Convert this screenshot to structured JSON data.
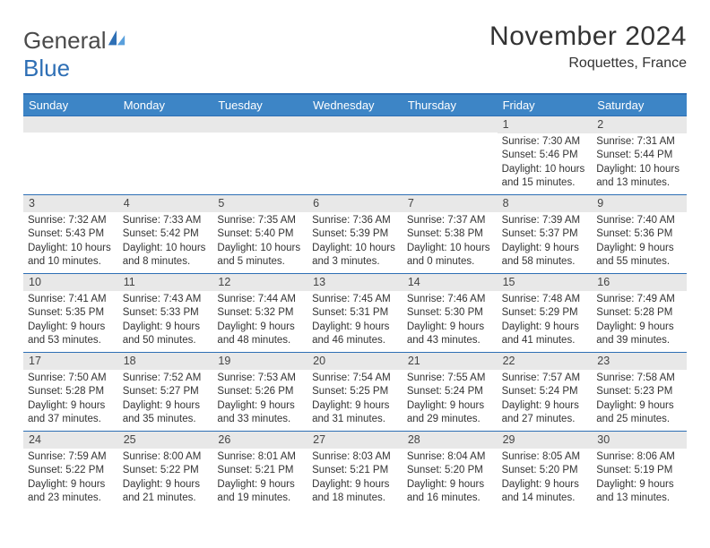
{
  "brand": {
    "part1": "General",
    "part2": "Blue"
  },
  "title": "November 2024",
  "location": "Roquettes, France",
  "colors": {
    "header_bg": "#3d85c6",
    "border": "#2e6fb5",
    "daynum_bg": "#e8e8e8",
    "text": "#333333",
    "brand_gray": "#4a4a4a",
    "brand_blue": "#2e6fb5"
  },
  "weekdays": [
    "Sunday",
    "Monday",
    "Tuesday",
    "Wednesday",
    "Thursday",
    "Friday",
    "Saturday"
  ],
  "weeks": [
    [
      {
        "empty": true
      },
      {
        "empty": true
      },
      {
        "empty": true
      },
      {
        "empty": true
      },
      {
        "empty": true
      },
      {
        "n": "1",
        "sunrise": "Sunrise: 7:30 AM",
        "sunset": "Sunset: 5:46 PM",
        "day": "Daylight: 10 hours and 15 minutes."
      },
      {
        "n": "2",
        "sunrise": "Sunrise: 7:31 AM",
        "sunset": "Sunset: 5:44 PM",
        "day": "Daylight: 10 hours and 13 minutes."
      }
    ],
    [
      {
        "n": "3",
        "sunrise": "Sunrise: 7:32 AM",
        "sunset": "Sunset: 5:43 PM",
        "day": "Daylight: 10 hours and 10 minutes."
      },
      {
        "n": "4",
        "sunrise": "Sunrise: 7:33 AM",
        "sunset": "Sunset: 5:42 PM",
        "day": "Daylight: 10 hours and 8 minutes."
      },
      {
        "n": "5",
        "sunrise": "Sunrise: 7:35 AM",
        "sunset": "Sunset: 5:40 PM",
        "day": "Daylight: 10 hours and 5 minutes."
      },
      {
        "n": "6",
        "sunrise": "Sunrise: 7:36 AM",
        "sunset": "Sunset: 5:39 PM",
        "day": "Daylight: 10 hours and 3 minutes."
      },
      {
        "n": "7",
        "sunrise": "Sunrise: 7:37 AM",
        "sunset": "Sunset: 5:38 PM",
        "day": "Daylight: 10 hours and 0 minutes."
      },
      {
        "n": "8",
        "sunrise": "Sunrise: 7:39 AM",
        "sunset": "Sunset: 5:37 PM",
        "day": "Daylight: 9 hours and 58 minutes."
      },
      {
        "n": "9",
        "sunrise": "Sunrise: 7:40 AM",
        "sunset": "Sunset: 5:36 PM",
        "day": "Daylight: 9 hours and 55 minutes."
      }
    ],
    [
      {
        "n": "10",
        "sunrise": "Sunrise: 7:41 AM",
        "sunset": "Sunset: 5:35 PM",
        "day": "Daylight: 9 hours and 53 minutes."
      },
      {
        "n": "11",
        "sunrise": "Sunrise: 7:43 AM",
        "sunset": "Sunset: 5:33 PM",
        "day": "Daylight: 9 hours and 50 minutes."
      },
      {
        "n": "12",
        "sunrise": "Sunrise: 7:44 AM",
        "sunset": "Sunset: 5:32 PM",
        "day": "Daylight: 9 hours and 48 minutes."
      },
      {
        "n": "13",
        "sunrise": "Sunrise: 7:45 AM",
        "sunset": "Sunset: 5:31 PM",
        "day": "Daylight: 9 hours and 46 minutes."
      },
      {
        "n": "14",
        "sunrise": "Sunrise: 7:46 AM",
        "sunset": "Sunset: 5:30 PM",
        "day": "Daylight: 9 hours and 43 minutes."
      },
      {
        "n": "15",
        "sunrise": "Sunrise: 7:48 AM",
        "sunset": "Sunset: 5:29 PM",
        "day": "Daylight: 9 hours and 41 minutes."
      },
      {
        "n": "16",
        "sunrise": "Sunrise: 7:49 AM",
        "sunset": "Sunset: 5:28 PM",
        "day": "Daylight: 9 hours and 39 minutes."
      }
    ],
    [
      {
        "n": "17",
        "sunrise": "Sunrise: 7:50 AM",
        "sunset": "Sunset: 5:28 PM",
        "day": "Daylight: 9 hours and 37 minutes."
      },
      {
        "n": "18",
        "sunrise": "Sunrise: 7:52 AM",
        "sunset": "Sunset: 5:27 PM",
        "day": "Daylight: 9 hours and 35 minutes."
      },
      {
        "n": "19",
        "sunrise": "Sunrise: 7:53 AM",
        "sunset": "Sunset: 5:26 PM",
        "day": "Daylight: 9 hours and 33 minutes."
      },
      {
        "n": "20",
        "sunrise": "Sunrise: 7:54 AM",
        "sunset": "Sunset: 5:25 PM",
        "day": "Daylight: 9 hours and 31 minutes."
      },
      {
        "n": "21",
        "sunrise": "Sunrise: 7:55 AM",
        "sunset": "Sunset: 5:24 PM",
        "day": "Daylight: 9 hours and 29 minutes."
      },
      {
        "n": "22",
        "sunrise": "Sunrise: 7:57 AM",
        "sunset": "Sunset: 5:24 PM",
        "day": "Daylight: 9 hours and 27 minutes."
      },
      {
        "n": "23",
        "sunrise": "Sunrise: 7:58 AM",
        "sunset": "Sunset: 5:23 PM",
        "day": "Daylight: 9 hours and 25 minutes."
      }
    ],
    [
      {
        "n": "24",
        "sunrise": "Sunrise: 7:59 AM",
        "sunset": "Sunset: 5:22 PM",
        "day": "Daylight: 9 hours and 23 minutes."
      },
      {
        "n": "25",
        "sunrise": "Sunrise: 8:00 AM",
        "sunset": "Sunset: 5:22 PM",
        "day": "Daylight: 9 hours and 21 minutes."
      },
      {
        "n": "26",
        "sunrise": "Sunrise: 8:01 AM",
        "sunset": "Sunset: 5:21 PM",
        "day": "Daylight: 9 hours and 19 minutes."
      },
      {
        "n": "27",
        "sunrise": "Sunrise: 8:03 AM",
        "sunset": "Sunset: 5:21 PM",
        "day": "Daylight: 9 hours and 18 minutes."
      },
      {
        "n": "28",
        "sunrise": "Sunrise: 8:04 AM",
        "sunset": "Sunset: 5:20 PM",
        "day": "Daylight: 9 hours and 16 minutes."
      },
      {
        "n": "29",
        "sunrise": "Sunrise: 8:05 AM",
        "sunset": "Sunset: 5:20 PM",
        "day": "Daylight: 9 hours and 14 minutes."
      },
      {
        "n": "30",
        "sunrise": "Sunrise: 8:06 AM",
        "sunset": "Sunset: 5:19 PM",
        "day": "Daylight: 9 hours and 13 minutes."
      }
    ]
  ]
}
